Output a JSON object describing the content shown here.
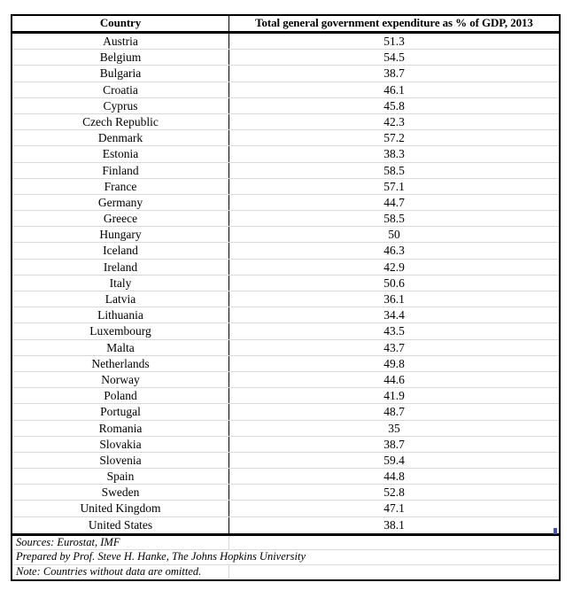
{
  "chart_data": {
    "type": "table",
    "title": "Total general government expenditure as % of GDP, 2013",
    "columns": [
      "Country",
      "Total general government expenditure as % of GDP, 2013"
    ],
    "rows": [
      [
        "Austria",
        "51.3"
      ],
      [
        "Belgium",
        "54.5"
      ],
      [
        "Bulgaria",
        "38.7"
      ],
      [
        "Croatia",
        "46.1"
      ],
      [
        "Cyprus",
        "45.8"
      ],
      [
        "Czech Republic",
        "42.3"
      ],
      [
        "Denmark",
        "57.2"
      ],
      [
        "Estonia",
        "38.3"
      ],
      [
        "Finland",
        "58.5"
      ],
      [
        "France",
        "57.1"
      ],
      [
        "Germany",
        "44.7"
      ],
      [
        "Greece",
        "58.5"
      ],
      [
        "Hungary",
        "50"
      ],
      [
        "Iceland",
        "46.3"
      ],
      [
        "Ireland",
        "42.9"
      ],
      [
        "Italy",
        "50.6"
      ],
      [
        "Latvia",
        "36.1"
      ],
      [
        "Lithuania",
        "34.4"
      ],
      [
        "Luxembourg",
        "43.5"
      ],
      [
        "Malta",
        "43.7"
      ],
      [
        "Netherlands",
        "49.8"
      ],
      [
        "Norway",
        "44.6"
      ],
      [
        "Poland",
        "41.9"
      ],
      [
        "Portugal",
        "48.7"
      ],
      [
        "Romania",
        "35"
      ],
      [
        "Slovakia",
        "38.7"
      ],
      [
        "Slovenia",
        "59.4"
      ],
      [
        "Spain",
        "44.8"
      ],
      [
        "Sweden",
        "52.8"
      ],
      [
        "United Kingdom",
        "47.1"
      ],
      [
        "United States",
        "38.1"
      ]
    ],
    "annotations": [
      "Sources: Eurostat, IMF",
      "Prepared by Prof. Steve H. Hanke, The Johns Hopkins University",
      "Note: Countries without data are omitted."
    ],
    "layout": {
      "grid": "on",
      "header_style": "bold, thick black rule below",
      "value_alignment": "center"
    }
  },
  "colors": {
    "background": "#ffffff",
    "text": "#000000",
    "outer_border": "#000000",
    "gridline": "#d9d9d9",
    "fill_handle_blue": "#4353bd"
  }
}
